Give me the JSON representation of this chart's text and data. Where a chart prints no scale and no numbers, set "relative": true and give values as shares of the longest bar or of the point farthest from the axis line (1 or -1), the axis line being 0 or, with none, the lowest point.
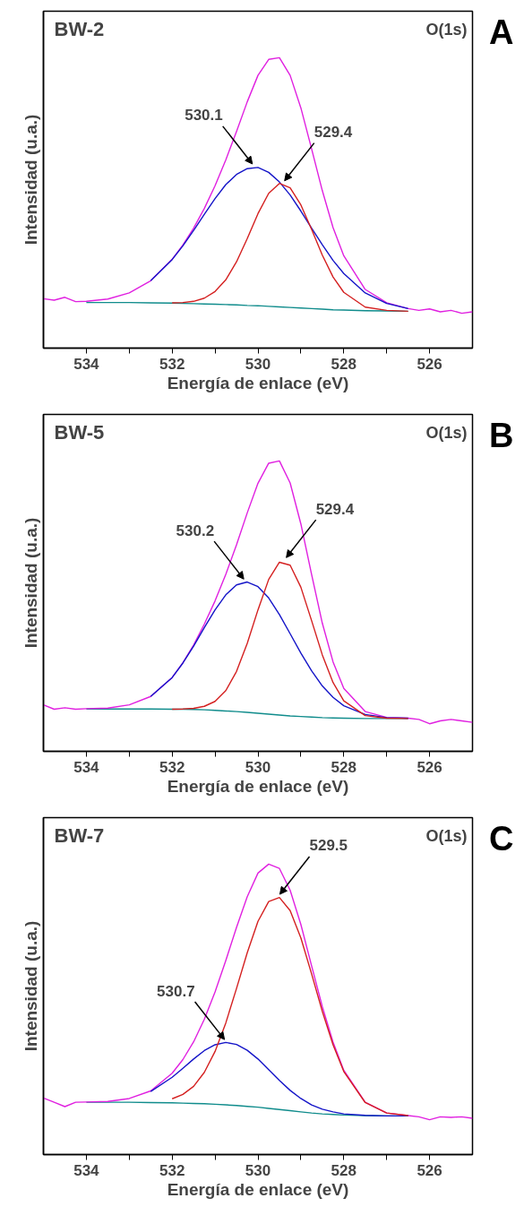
{
  "chart_data": [
    {
      "type": "line",
      "title": "BW-2",
      "subtitle": "O(1s)",
      "xlabel": "Energía de enlace (eV)",
      "ylabel": "Intensidad (u.a.)",
      "relative": true,
      "xlim": [
        535,
        525
      ],
      "xticks": [
        534,
        {
          "value": 533,
          "label": null
        },
        532,
        {
          "value": 531,
          "label": null
        },
        530,
        {
          "value": 529,
          "label": null
        },
        528,
        {
          "value": 527,
          "label": null
        },
        526
      ],
      "grid": false,
      "marker": "none",
      "line_style": "solid",
      "x": [
        534,
        533.5,
        533,
        532.5,
        532,
        531.75,
        531.5,
        531.25,
        531,
        530.75,
        530.5,
        530.25,
        530,
        529.75,
        529.5,
        529.25,
        529,
        528.75,
        528.5,
        528.25,
        528,
        527.5,
        527,
        526.5
      ],
      "series": [
        {
          "color": "#108c8c",
          "values": [
            0.157,
            0.157,
            0.157,
            0.156,
            0.155,
            0.154,
            0.153,
            0.152,
            0.151,
            0.15,
            0.149,
            0.147,
            0.146,
            0.144,
            0.142,
            0.14,
            0.138,
            0.136,
            0.134,
            0.132,
            0.131,
            0.129,
            0.128,
            0.127
          ]
        },
        {
          "color": "#d42020",
          "values": [
            null,
            null,
            null,
            null,
            0.156,
            0.157,
            0.161,
            0.172,
            0.195,
            0.235,
            0.297,
            0.377,
            0.463,
            0.533,
            0.567,
            0.552,
            0.493,
            0.409,
            0.32,
            0.245,
            0.192,
            0.141,
            0.13,
            0.127
          ]
        },
        {
          "color": "#1414c8",
          "values": [
            null,
            null,
            null,
            0.232,
            0.305,
            0.352,
            0.405,
            0.461,
            0.515,
            0.563,
            0.598,
            0.618,
            0.622,
            0.605,
            0.572,
            0.527,
            0.472,
            0.413,
            0.356,
            0.302,
            0.257,
            0.19,
            0.154,
            0.136
          ]
        },
        {
          "color": "#e020e0",
          "x": [
            535,
            534.75,
            534.5,
            534.25,
            534,
            533.5,
            533,
            532.5,
            532,
            531.75,
            531.5,
            531.25,
            531,
            530.75,
            530.5,
            530.25,
            530,
            529.75,
            529.5,
            529.25,
            529,
            528.75,
            528.5,
            528.25,
            528,
            527.5,
            527,
            526.5,
            526.25,
            526,
            525.75,
            525.5,
            525.25,
            525
          ],
          "values": [
            0.17,
            0.165,
            0.175,
            0.16,
            0.161,
            0.169,
            0.19,
            0.232,
            0.306,
            0.355,
            0.413,
            0.481,
            0.559,
            0.648,
            0.746,
            0.848,
            0.939,
            0.994,
            1.0,
            0.939,
            0.827,
            0.686,
            0.542,
            0.415,
            0.318,
            0.202,
            0.156,
            0.136,
            0.13,
            0.135,
            0.125,
            0.13,
            0.12,
            0.125
          ]
        }
      ],
      "annotations": [
        {
          "text": "530.1",
          "x": 530.07,
          "y": 0.624
        },
        {
          "text": "529.4",
          "x": 529.44,
          "y": 0.566
        },
        "A"
      ]
    },
    {
      "type": "line",
      "title": "BW-5",
      "subtitle": "O(1s)",
      "xlabel": "Energía de enlace (eV)",
      "ylabel": "Intensidad (u.a.)",
      "relative": true,
      "xlim": [
        535,
        525
      ],
      "xticks": [
        534,
        {
          "value": 533,
          "label": null
        },
        532,
        {
          "value": 531,
          "label": null
        },
        530,
        {
          "value": 529,
          "label": null
        },
        528,
        {
          "value": 527,
          "label": null
        },
        526
      ],
      "grid": false,
      "marker": "none",
      "line_style": "solid",
      "x": [
        534,
        533.5,
        533,
        532.5,
        532,
        531.75,
        531.5,
        531.25,
        531,
        530.75,
        530.5,
        530.25,
        530,
        529.75,
        529.5,
        529.25,
        529,
        528.75,
        528.5,
        528.25,
        528,
        527.5,
        527,
        526.5
      ],
      "series": [
        {
          "color": "#108c8c",
          "values": [
            0.146,
            0.146,
            0.146,
            0.146,
            0.145,
            0.145,
            0.144,
            0.143,
            0.141,
            0.139,
            0.137,
            0.134,
            0.131,
            0.128,
            0.125,
            0.122,
            0.12,
            0.118,
            0.116,
            0.115,
            0.114,
            0.113,
            0.113,
            0.113
          ]
        },
        {
          "color": "#d42020",
          "values": [
            null,
            null,
            null,
            null,
            0.145,
            0.146,
            0.148,
            0.155,
            0.172,
            0.209,
            0.275,
            0.372,
            0.487,
            0.592,
            0.651,
            0.641,
            0.565,
            0.45,
            0.332,
            0.237,
            0.174,
            0.123,
            0.114,
            0.113
          ]
        },
        {
          "color": "#1414c8",
          "values": [
            null,
            null,
            null,
            0.189,
            0.254,
            0.304,
            0.362,
            0.426,
            0.487,
            0.539,
            0.573,
            0.583,
            0.567,
            0.528,
            0.471,
            0.405,
            0.338,
            0.277,
            0.225,
            0.186,
            0.157,
            0.127,
            0.116,
            0.114
          ]
        },
        {
          "color": "#e020e0",
          "x": [
            535,
            534.75,
            534.5,
            534.25,
            534,
            533.5,
            533,
            532.5,
            532,
            531.75,
            531.5,
            531.25,
            531,
            530.75,
            530.5,
            530.25,
            530,
            529.75,
            529.5,
            529.25,
            529,
            528.75,
            528.5,
            528.25,
            528,
            527.5,
            527,
            526.5,
            526.25,
            526,
            525.75,
            525.5,
            525.25,
            525
          ],
          "values": [
            0.16,
            0.145,
            0.15,
            0.145,
            0.147,
            0.149,
            0.16,
            0.189,
            0.254,
            0.305,
            0.366,
            0.438,
            0.518,
            0.609,
            0.711,
            0.821,
            0.923,
            0.992,
            1.0,
            0.924,
            0.783,
            0.609,
            0.441,
            0.308,
            0.217,
            0.137,
            0.117,
            0.114,
            0.11,
            0.095,
            0.105,
            0.11,
            0.105,
            0.1
          ]
        }
      ],
      "annotations": [
        {
          "text": "530.2",
          "x": 530.27,
          "y": 0.583
        },
        {
          "text": "529.4",
          "x": 529.4,
          "y": 0.657
        },
        "B"
      ]
    },
    {
      "type": "line",
      "title": "BW-7",
      "subtitle": "O(1s)",
      "xlabel": "Energía de enlace (eV)",
      "ylabel": "Intensidad (u.a.)",
      "relative": true,
      "xlim": [
        535,
        525
      ],
      "xticks": [
        534,
        {
          "value": 533,
          "label": null
        },
        532,
        {
          "value": 531,
          "label": null
        },
        530,
        {
          "value": 529,
          "label": null
        },
        528,
        {
          "value": 527,
          "label": null
        },
        526
      ],
      "grid": false,
      "marker": "none",
      "line_style": "solid",
      "x": [
        534,
        533.5,
        533,
        532.5,
        532,
        531.75,
        531.5,
        531.25,
        531,
        530.75,
        530.5,
        530.25,
        530,
        529.75,
        529.5,
        529.25,
        529,
        528.75,
        528.5,
        528.25,
        528,
        527.5,
        527,
        526.5
      ],
      "series": [
        {
          "color": "#108c8c",
          "values": [
            0.18,
            0.18,
            0.18,
            0.179,
            0.178,
            0.177,
            0.176,
            0.175,
            0.173,
            0.171,
            0.169,
            0.166,
            0.163,
            0.159,
            0.155,
            0.151,
            0.147,
            0.143,
            0.14,
            0.138,
            0.136,
            0.134,
            0.133,
            0.133
          ]
        },
        {
          "color": "#d42020",
          "values": [
            null,
            null,
            null,
            null,
            0.192,
            0.207,
            0.235,
            0.283,
            0.355,
            0.453,
            0.572,
            0.695,
            0.803,
            0.871,
            0.885,
            0.84,
            0.746,
            0.622,
            0.493,
            0.378,
            0.286,
            0.179,
            0.143,
            0.134
          ]
        },
        {
          "color": "#1414c8",
          "values": [
            null,
            null,
            null,
            0.217,
            0.266,
            0.297,
            0.329,
            0.358,
            0.378,
            0.386,
            0.379,
            0.359,
            0.329,
            0.292,
            0.255,
            0.221,
            0.193,
            0.171,
            0.156,
            0.147,
            0.14,
            0.135,
            0.133,
            0.133
          ]
        },
        {
          "color": "#e020e0",
          "x": [
            535,
            534.75,
            534.5,
            534.25,
            534,
            533.5,
            533,
            532.5,
            532,
            531.75,
            531.5,
            531.25,
            531,
            530.75,
            530.5,
            530.25,
            530,
            529.75,
            529.5,
            529.25,
            529,
            528.75,
            528.5,
            528.25,
            528,
            527.5,
            527,
            526.5,
            526.25,
            526,
            525.75,
            525.5,
            525.25,
            525
          ],
          "values": [
            0.195,
            0.18,
            0.165,
            0.18,
            0.181,
            0.183,
            0.193,
            0.219,
            0.28,
            0.327,
            0.388,
            0.466,
            0.56,
            0.668,
            0.782,
            0.888,
            0.969,
            1.0,
            0.985,
            0.91,
            0.792,
            0.65,
            0.509,
            0.387,
            0.29,
            0.18,
            0.143,
            0.134,
            0.13,
            0.12,
            0.13,
            0.128,
            0.13,
            0.125
          ]
        }
      ],
      "annotations": [
        {
          "text": "530.7",
          "x": 530.72,
          "y": 0.386
        },
        {
          "text": "529.5",
          "x": 529.55,
          "y": 0.886
        },
        "C"
      ]
    }
  ]
}
